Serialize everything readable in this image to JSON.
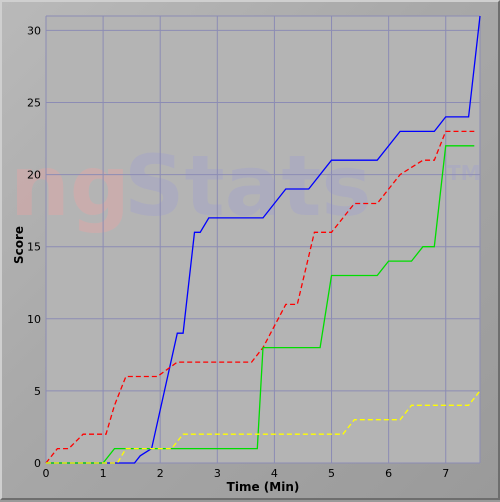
{
  "watermark": {
    "part1": "ng",
    "part2": "Stats",
    "tm": "TM"
  },
  "chart_data": {
    "type": "line",
    "xlabel": "Time (Min)",
    "ylabel": "Score",
    "xlim": [
      0,
      7.6
    ],
    "ylim": [
      0,
      31
    ],
    "xticks": [
      0,
      1,
      2,
      3,
      4,
      5,
      6,
      7
    ],
    "yticks": [
      0,
      5,
      10,
      15,
      20,
      25,
      30
    ],
    "grid": true,
    "legend": "none",
    "series": [
      {
        "color": "#0000ff",
        "dash": "solid",
        "x": [
          0,
          1.55,
          1.65,
          1.85,
          2.3,
          2.4,
          2.6,
          2.7,
          2.85,
          3.0,
          3.8,
          4.2,
          4.6,
          5.0,
          5.2,
          5.8,
          6.2,
          6.8,
          7.0,
          7.4,
          7.6
        ],
        "y": [
          0,
          0,
          0.5,
          1,
          9,
          9,
          16,
          16,
          17,
          17,
          17,
          19,
          19,
          21,
          21,
          21,
          23,
          23,
          24,
          24,
          31
        ]
      },
      {
        "color": "#ff0000",
        "dash": "dashed",
        "x": [
          0,
          0.2,
          0.4,
          0.65,
          1.05,
          1.2,
          1.4,
          1.95,
          2.3,
          3.6,
          3.8,
          4.2,
          4.4,
          4.7,
          5.0,
          5.4,
          5.8,
          6.2,
          6.6,
          6.8,
          7.0,
          7.5
        ],
        "y": [
          0,
          1,
          1,
          2,
          2,
          4,
          6,
          6,
          7,
          7,
          8,
          11,
          11,
          16,
          16,
          18,
          18,
          20,
          21,
          21,
          23,
          23
        ]
      },
      {
        "color": "#00dd00",
        "dash": "solid",
        "x": [
          0,
          1.0,
          1.2,
          1.6,
          3.7,
          3.8,
          4.8,
          5.0,
          5.1,
          5.8,
          6.0,
          6.4,
          6.6,
          6.8,
          7.0,
          7.5
        ],
        "y": [
          0,
          0,
          1,
          1,
          1,
          8,
          8,
          13,
          13,
          13,
          14,
          14,
          15,
          15,
          22,
          22
        ]
      },
      {
        "color": "#ffff00",
        "dash": "dashed",
        "x": [
          0,
          1.25,
          1.4,
          2.2,
          2.4,
          5.2,
          5.4,
          6.2,
          6.4,
          7.4,
          7.6
        ],
        "y": [
          0,
          0,
          1,
          1,
          2,
          2,
          3,
          3,
          4,
          4,
          5
        ]
      }
    ]
  }
}
